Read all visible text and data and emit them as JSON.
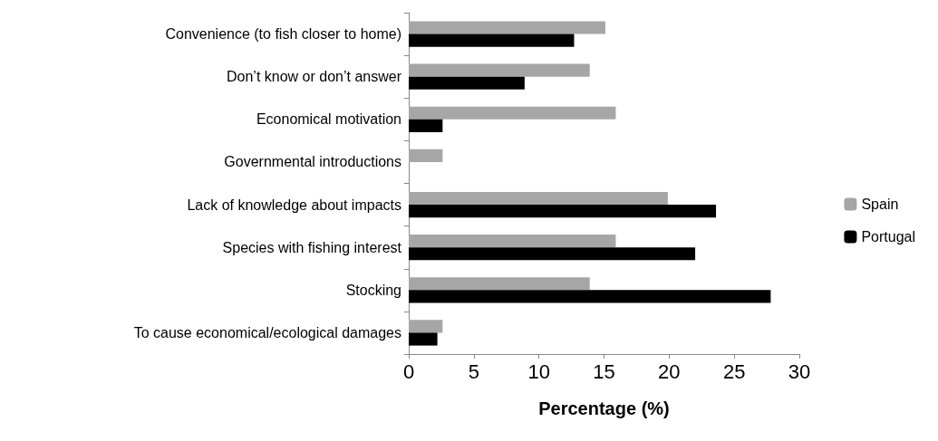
{
  "chart_data": {
    "type": "bar",
    "orientation": "horizontal",
    "xlabel": "Percentage (%)",
    "categories": [
      "Convenience (to fish closer to home)",
      "Don’t know or don’t answer",
      "Economical motivation",
      "Governmental introductions",
      "Lack of knowledge about impacts",
      "Species with fishing interest",
      "Stocking",
      "To cause economical/ecological damages"
    ],
    "series": [
      {
        "name": "Spain",
        "color": "#a6a6a6",
        "values": [
          15.1,
          13.9,
          15.9,
          2.6,
          19.9,
          15.9,
          13.9,
          2.6
        ]
      },
      {
        "name": "Portugal",
        "color": "#000000",
        "values": [
          12.7,
          8.9,
          2.6,
          0,
          23.6,
          22.0,
          27.8,
          2.2
        ]
      }
    ],
    "xlim": [
      0,
      30
    ],
    "xticks": [
      0,
      5,
      10,
      15,
      20,
      25,
      30
    ],
    "grid": false,
    "legend": "right"
  }
}
